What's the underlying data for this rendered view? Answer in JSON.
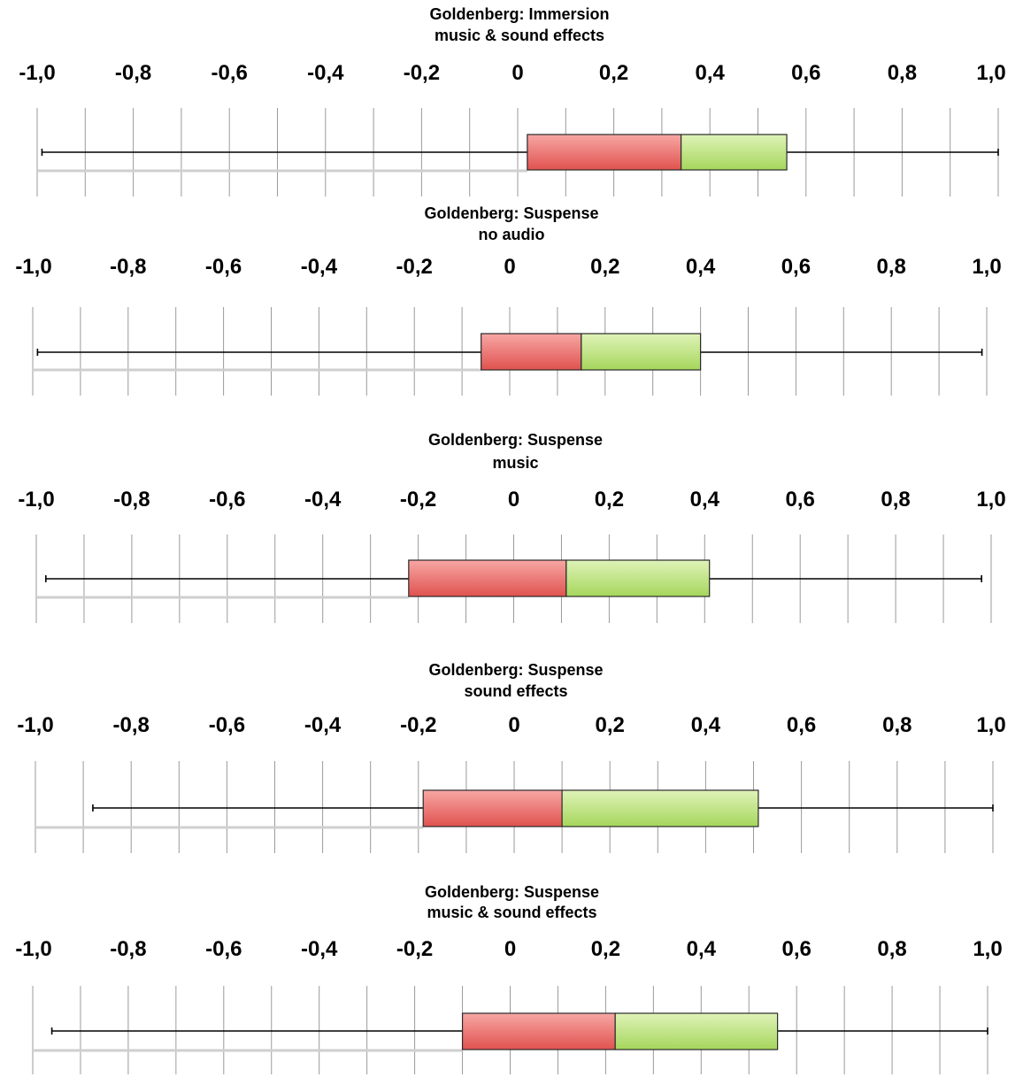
{
  "chart_data": [
    {
      "type": "box",
      "title_lines": [
        "Goldenberg: Immersion",
        "music & sound effects"
      ],
      "tick_labels": [
        "-1,0",
        "-0,8",
        "-0,6",
        "-0,4",
        "-0,2",
        "0",
        "0,2",
        "0,4",
        "0,6",
        "0,8",
        "1,0"
      ],
      "xlim": [
        -1.0,
        1.0
      ],
      "grid": true,
      "min": -0.99,
      "q1": 0.02,
      "median": 0.34,
      "q3": 0.56,
      "max": 1.0,
      "colors": {
        "lower_box": "#ea6f6c",
        "upper_box": "#b8e07a"
      }
    },
    {
      "type": "box",
      "title_lines": [
        "Goldenberg: Suspense",
        "no audio"
      ],
      "tick_labels": [
        "-1,0",
        "-0,8",
        "-0,6",
        "-0,4",
        "-0,2",
        "0",
        "0,2",
        "0,4",
        "0,6",
        "0,8",
        "1,0"
      ],
      "xlim": [
        -1.0,
        1.0
      ],
      "grid": true,
      "min": -0.99,
      "q1": -0.06,
      "median": 0.15,
      "q3": 0.4,
      "max": 0.99,
      "colors": {
        "lower_box": "#ea6f6c",
        "upper_box": "#b8e07a"
      }
    },
    {
      "type": "box",
      "title_lines": [
        "Goldenberg: Suspense",
        "music"
      ],
      "tick_labels": [
        "-1,0",
        "-0,8",
        "-0,6",
        "-0,4",
        "-0,2",
        "0",
        "0,2",
        "0,4",
        "0,6",
        "0,8",
        "1,0"
      ],
      "xlim": [
        -1.0,
        1.0
      ],
      "grid": true,
      "min": -0.98,
      "q1": -0.22,
      "median": 0.11,
      "q3": 0.41,
      "max": 0.98,
      "colors": {
        "lower_box": "#ea6f6c",
        "upper_box": "#b8e07a"
      }
    },
    {
      "type": "box",
      "title_lines": [
        "Goldenberg: Suspense",
        "sound effects"
      ],
      "tick_labels": [
        "-1,0",
        "-0,8",
        "-0,6",
        "-0,4",
        "-0,2",
        "0",
        "0,2",
        "0,4",
        "0,6",
        "0,8",
        "1,0"
      ],
      "xlim": [
        -1.0,
        1.0
      ],
      "grid": true,
      "min": -0.88,
      "q1": -0.19,
      "median": 0.1,
      "q3": 0.51,
      "max": 1.0,
      "colors": {
        "lower_box": "#ea6f6c",
        "upper_box": "#b8e07a"
      }
    },
    {
      "type": "box",
      "title_lines": [
        "Goldenberg: Suspense",
        "music & sound effects"
      ],
      "tick_labels": [
        "-1,0",
        "-0,8",
        "-0,6",
        "-0,4",
        "-0,2",
        "0",
        "0,2",
        "0,4",
        "0,6",
        "0,8",
        "1,0"
      ],
      "xlim": [
        -1.0,
        1.0
      ],
      "grid": true,
      "min": -0.96,
      "q1": -0.1,
      "median": 0.22,
      "q3": 0.56,
      "max": 1.0,
      "colors": {
        "lower_box": "#ea6f6c",
        "upper_box": "#b8e07a"
      }
    }
  ]
}
